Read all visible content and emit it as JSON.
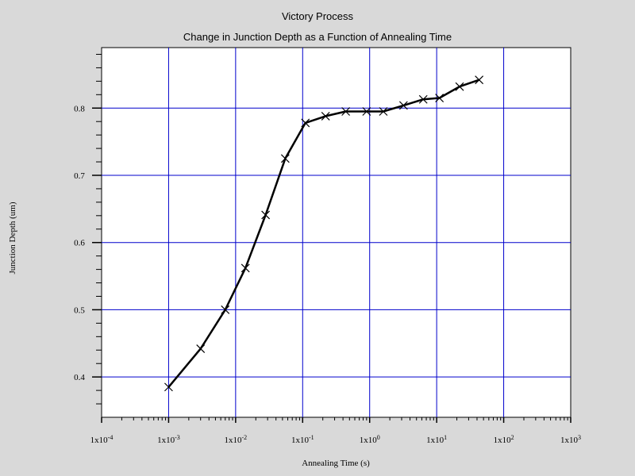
{
  "app_title": "Victory Process",
  "chart_data": {
    "type": "line",
    "title": "Change in Junction Depth as a Function of Annealing Time",
    "xlabel": "Annealing Time (s)",
    "ylabel": "Junction Depth (um)",
    "x_scale": "log",
    "xlim": [
      0.0001,
      1000
    ],
    "ylim": [
      0.34,
      0.89
    ],
    "grid": true,
    "x_ticks": [
      {
        "value": 0.0001,
        "label": "1x10-4",
        "base": "1x10",
        "exp": "-4"
      },
      {
        "value": 0.001,
        "label": "1x10-3",
        "base": "1x10",
        "exp": "-3"
      },
      {
        "value": 0.01,
        "label": "1x10-2",
        "base": "1x10",
        "exp": "-2"
      },
      {
        "value": 0.1,
        "label": "1x10-1",
        "base": "1x10",
        "exp": "-1"
      },
      {
        "value": 1,
        "label": "1x100",
        "base": "1x10",
        "exp": "0"
      },
      {
        "value": 10,
        "label": "1x101",
        "base": "1x10",
        "exp": "1"
      },
      {
        "value": 100,
        "label": "1x102",
        "base": "1x10",
        "exp": "2"
      },
      {
        "value": 1000,
        "label": "1x103",
        "base": "1x10",
        "exp": "3"
      }
    ],
    "y_ticks": [
      {
        "value": 0.4,
        "label": "0.4"
      },
      {
        "value": 0.5,
        "label": "0.5"
      },
      {
        "value": 0.6,
        "label": "0.6"
      },
      {
        "value": 0.7,
        "label": "0.7"
      },
      {
        "value": 0.8,
        "label": "0.8"
      }
    ],
    "series": [
      {
        "x": [
          0.001,
          0.003,
          0.007,
          0.014,
          0.028,
          0.055,
          0.11,
          0.22,
          0.44,
          0.9,
          1.6,
          3.2,
          6.3,
          11,
          22,
          43
        ],
        "y": [
          0.385,
          0.442,
          0.5,
          0.562,
          0.641,
          0.725,
          0.778,
          0.788,
          0.795,
          0.795,
          0.795,
          0.804,
          0.813,
          0.815,
          0.832,
          0.842
        ]
      }
    ],
    "colors": {
      "background": "#d9d9d9",
      "plot_background": "#ffffff",
      "grid_vertical": "#0000cc",
      "grid_horizontal_major": "#0000cc",
      "line": "#000000"
    }
  }
}
